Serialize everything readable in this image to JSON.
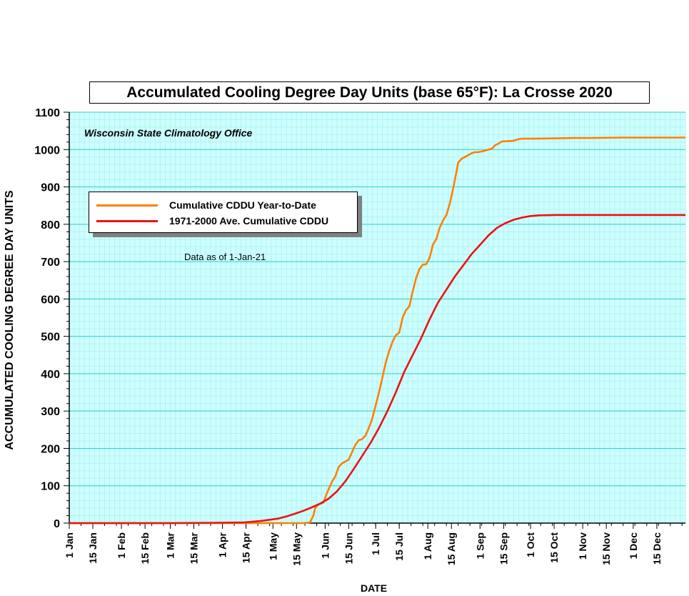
{
  "chart_data": {
    "type": "line",
    "title": "Accumulated Cooling Degree Day Units (base 65°F): La Crosse 2020",
    "subtitle": "Wisconsin State Climatology Office",
    "annotation": "Data as of 1-Jan-21",
    "xlabel": "DATE",
    "ylabel": "ACCUMULATED COOLING DEGREE DAY UNITS",
    "x_unit": "day of year 2020",
    "xlim": [
      1,
      367
    ],
    "ylim": [
      0,
      1100
    ],
    "y_ticks": [
      0,
      100,
      200,
      300,
      400,
      500,
      600,
      700,
      800,
      900,
      1000,
      1100
    ],
    "x_ticks": [
      {
        "day": 1,
        "label": "1 Jan"
      },
      {
        "day": 15,
        "label": "15 Jan"
      },
      {
        "day": 32,
        "label": "1 Feb"
      },
      {
        "day": 46,
        "label": "15 Feb"
      },
      {
        "day": 61,
        "label": "1 Mar"
      },
      {
        "day": 75,
        "label": "15 Mar"
      },
      {
        "day": 92,
        "label": "1 Apr"
      },
      {
        "day": 106,
        "label": "15 Apr"
      },
      {
        "day": 122,
        "label": "1 May"
      },
      {
        "day": 136,
        "label": "15 May"
      },
      {
        "day": 153,
        "label": "1 Jun"
      },
      {
        "day": 167,
        "label": "15 Jun"
      },
      {
        "day": 183,
        "label": "1 Jul"
      },
      {
        "day": 197,
        "label": "15 Jul"
      },
      {
        "day": 214,
        "label": "1 Aug"
      },
      {
        "day": 228,
        "label": "15 Aug"
      },
      {
        "day": 245,
        "label": "1 Sep"
      },
      {
        "day": 259,
        "label": "15 Sep"
      },
      {
        "day": 275,
        "label": "1 Oct"
      },
      {
        "day": 289,
        "label": "15 Oct"
      },
      {
        "day": 306,
        "label": "1 Nov"
      },
      {
        "day": 320,
        "label": "15 Nov"
      },
      {
        "day": 336,
        "label": "1 Dec"
      },
      {
        "day": 350,
        "label": "15 Dec"
      }
    ],
    "grid": true,
    "legend_position": "upper-left",
    "background_color": "#ccffff",
    "grid_color": "#33cccc",
    "series": [
      {
        "name": "Cumulative CDDU Year-to-Date",
        "color": "#ff8000",
        "points": [
          [
            1,
            0
          ],
          [
            140,
            0
          ],
          [
            144,
            2
          ],
          [
            146,
            20
          ],
          [
            147,
            40
          ],
          [
            149,
            50
          ],
          [
            152,
            55
          ],
          [
            154,
            80
          ],
          [
            157,
            110
          ],
          [
            159,
            125
          ],
          [
            161,
            150
          ],
          [
            163,
            160
          ],
          [
            165,
            165
          ],
          [
            167,
            170
          ],
          [
            169,
            190
          ],
          [
            171,
            210
          ],
          [
            173,
            222
          ],
          [
            175,
            225
          ],
          [
            177,
            235
          ],
          [
            179,
            255
          ],
          [
            181,
            280
          ],
          [
            183,
            315
          ],
          [
            185,
            350
          ],
          [
            187,
            390
          ],
          [
            189,
            430
          ],
          [
            191,
            460
          ],
          [
            193,
            485
          ],
          [
            195,
            503
          ],
          [
            197,
            510
          ],
          [
            199,
            550
          ],
          [
            201,
            570
          ],
          [
            203,
            580
          ],
          [
            205,
            620
          ],
          [
            207,
            655
          ],
          [
            209,
            680
          ],
          [
            211,
            692
          ],
          [
            213,
            693
          ],
          [
            215,
            710
          ],
          [
            217,
            745
          ],
          [
            219,
            760
          ],
          [
            221,
            790
          ],
          [
            223,
            810
          ],
          [
            225,
            825
          ],
          [
            227,
            855
          ],
          [
            229,
            895
          ],
          [
            231,
            940
          ],
          [
            232,
            965
          ],
          [
            234,
            975
          ],
          [
            236,
            980
          ],
          [
            238,
            985
          ],
          [
            240,
            990
          ],
          [
            242,
            993
          ],
          [
            244,
            993
          ],
          [
            246,
            995
          ],
          [
            248,
            997
          ],
          [
            250,
            1000
          ],
          [
            252,
            1002
          ],
          [
            254,
            1012
          ],
          [
            256,
            1016
          ],
          [
            258,
            1022
          ],
          [
            260,
            1022
          ],
          [
            262,
            1023
          ],
          [
            264,
            1023
          ],
          [
            266,
            1025
          ],
          [
            268,
            1028
          ],
          [
            270,
            1029
          ],
          [
            275,
            1029
          ],
          [
            290,
            1030
          ],
          [
            300,
            1031
          ],
          [
            310,
            1031
          ],
          [
            330,
            1032
          ],
          [
            350,
            1032
          ],
          [
            367,
            1032
          ]
        ]
      },
      {
        "name": "1971-2000 Ave. Cumulative CDDU",
        "color": "#ee1111",
        "points": [
          [
            1,
            0
          ],
          [
            60,
            0
          ],
          [
            90,
            1
          ],
          [
            105,
            2
          ],
          [
            115,
            6
          ],
          [
            120,
            9
          ],
          [
            125,
            12
          ],
          [
            130,
            18
          ],
          [
            135,
            25
          ],
          [
            140,
            33
          ],
          [
            145,
            42
          ],
          [
            150,
            52
          ],
          [
            155,
            65
          ],
          [
            160,
            85
          ],
          [
            165,
            112
          ],
          [
            170,
            145
          ],
          [
            175,
            180
          ],
          [
            180,
            215
          ],
          [
            185,
            255
          ],
          [
            190,
            300
          ],
          [
            195,
            350
          ],
          [
            200,
            405
          ],
          [
            205,
            450
          ],
          [
            210,
            495
          ],
          [
            215,
            545
          ],
          [
            220,
            590
          ],
          [
            225,
            625
          ],
          [
            230,
            660
          ],
          [
            235,
            690
          ],
          [
            240,
            720
          ],
          [
            245,
            745
          ],
          [
            250,
            770
          ],
          [
            255,
            790
          ],
          [
            260,
            803
          ],
          [
            265,
            812
          ],
          [
            270,
            818
          ],
          [
            275,
            822
          ],
          [
            280,
            824
          ],
          [
            290,
            825
          ],
          [
            300,
            825
          ],
          [
            330,
            825
          ],
          [
            367,
            825
          ]
        ]
      }
    ]
  }
}
